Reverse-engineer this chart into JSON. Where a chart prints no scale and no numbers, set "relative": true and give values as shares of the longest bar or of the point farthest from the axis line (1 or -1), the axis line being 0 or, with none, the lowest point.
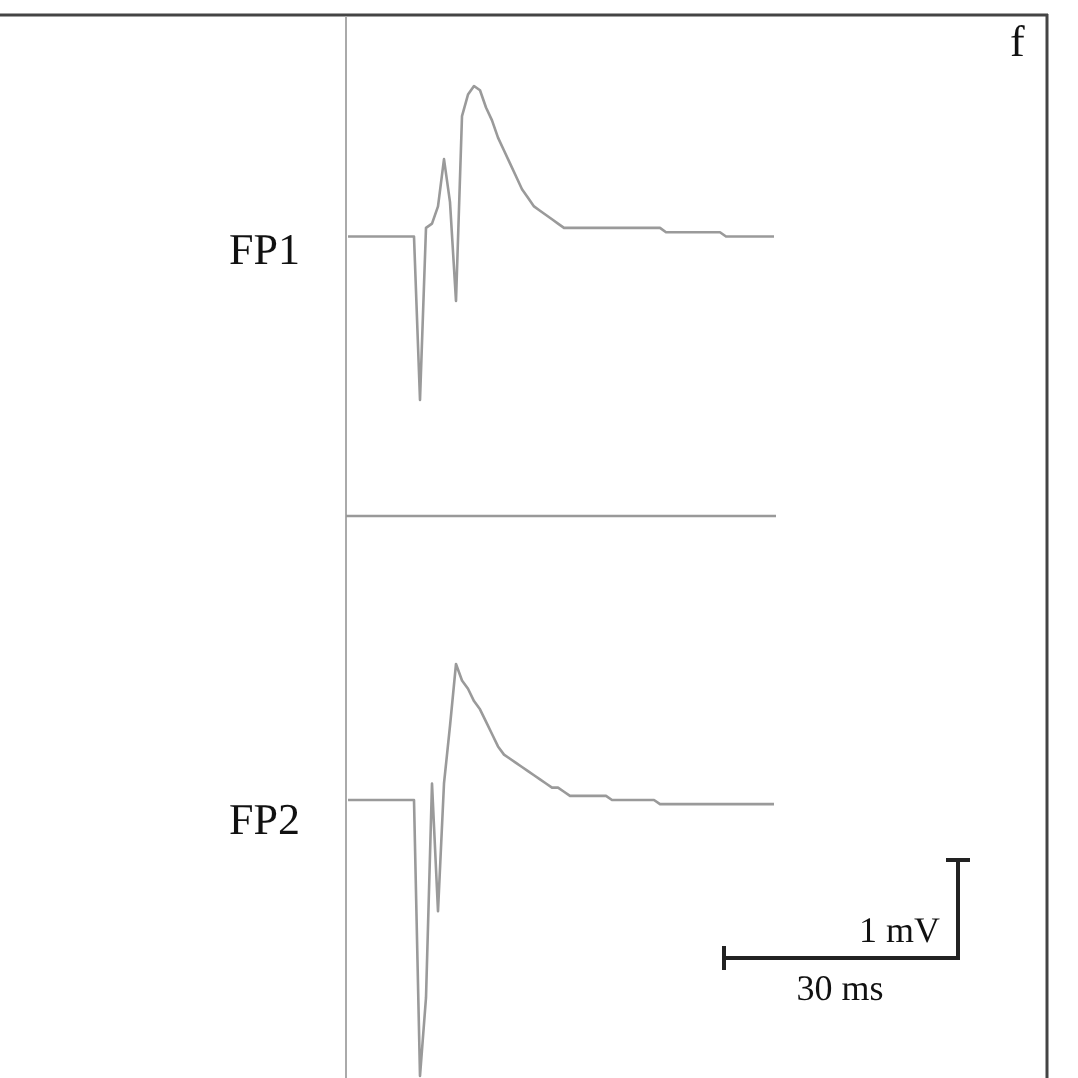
{
  "chart_data": [
    {
      "type": "line",
      "relative": true,
      "annotations": [
        "f"
      ],
      "categories": [
        null,
        null,
        null,
        null,
        null,
        null,
        null,
        null,
        null,
        null,
        null,
        null,
        null,
        null,
        null,
        null,
        null,
        null,
        null,
        null,
        null,
        null,
        null,
        null,
        null,
        null,
        null,
        null,
        null,
        null,
        null,
        null,
        null,
        null,
        null,
        null,
        null,
        null,
        null,
        null,
        null,
        null,
        null,
        null,
        null,
        null,
        null,
        null,
        null,
        null,
        null,
        null,
        null,
        null,
        null,
        null,
        null,
        null,
        null,
        null,
        null,
        null,
        null,
        null,
        null,
        null,
        null,
        null,
        null,
        null,
        null,
        null
      ],
      "series": [
        {
          "name": "FP1",
          "color": "#9a9a9a",
          "values": [
            0.65,
            0.65,
            0.65,
            0.65,
            0.65,
            0.65,
            0.65,
            0.65,
            0.65,
            0.65,
            0.65,
            0.65,
            0.27,
            0.67,
            0.68,
            0.72,
            0.83,
            0.73,
            0.5,
            0.93,
            0.98,
            1,
            0.99,
            0.95,
            0.92,
            0.88,
            0.85,
            0.82,
            0.79,
            0.76,
            0.74,
            0.72,
            0.71,
            0.7,
            0.69,
            0.68,
            0.67,
            0.67,
            0.67,
            0.67,
            0.67,
            0.67,
            0.67,
            0.67,
            0.67,
            0.67,
            0.67,
            0.67,
            0.67,
            0.67,
            0.67,
            0.67,
            0.67,
            0.66,
            0.66,
            0.66,
            0.66,
            0.66,
            0.66,
            0.66,
            0.66,
            0.66,
            0.66,
            0.65,
            0.65,
            0.65,
            0.65,
            0.65,
            0.65,
            0.65,
            0.65,
            0.65
          ]
        }
      ]
    },
    {
      "type": "line",
      "relative": true,
      "annotations": [
        "1 mV",
        "30 ms"
      ],
      "categories": [
        null,
        null,
        null,
        null,
        null,
        null,
        null,
        null,
        null,
        null,
        null,
        null,
        null,
        null,
        null,
        null,
        null,
        null,
        null,
        null,
        null,
        null,
        null,
        null,
        null,
        null,
        null,
        null,
        null,
        null,
        null,
        null,
        null,
        null,
        null,
        null,
        null,
        null,
        null,
        null,
        null,
        null,
        null,
        null,
        null,
        null,
        null,
        null,
        null,
        null,
        null,
        null,
        null,
        null,
        null,
        null,
        null,
        null,
        null,
        null,
        null,
        null,
        null,
        null,
        null,
        null,
        null,
        null,
        null,
        null,
        null,
        null
      ],
      "series": [
        {
          "name": "FP2",
          "color": "#9a9a9a",
          "values": [
            0.67,
            0.67,
            0.67,
            0.67,
            0.67,
            0.67,
            0.67,
            0.67,
            0.67,
            0.67,
            0.67,
            0.67,
            0,
            0.19,
            0.71,
            0.4,
            0.71,
            0.85,
            1,
            0.96,
            0.94,
            0.91,
            0.89,
            0.86,
            0.83,
            0.8,
            0.78,
            0.77,
            0.76,
            0.75,
            0.74,
            0.73,
            0.72,
            0.71,
            0.7,
            0.7,
            0.69,
            0.68,
            0.68,
            0.68,
            0.68,
            0.68,
            0.68,
            0.68,
            0.67,
            0.67,
            0.67,
            0.67,
            0.67,
            0.67,
            0.67,
            0.67,
            0.66,
            0.66,
            0.66,
            0.66,
            0.66,
            0.66,
            0.66,
            0.66,
            0.66,
            0.66,
            0.66,
            0.66,
            0.66,
            0.66,
            0.66,
            0.66,
            0.66,
            0.66,
            0.66,
            0.66
          ]
        }
      ]
    }
  ]
}
